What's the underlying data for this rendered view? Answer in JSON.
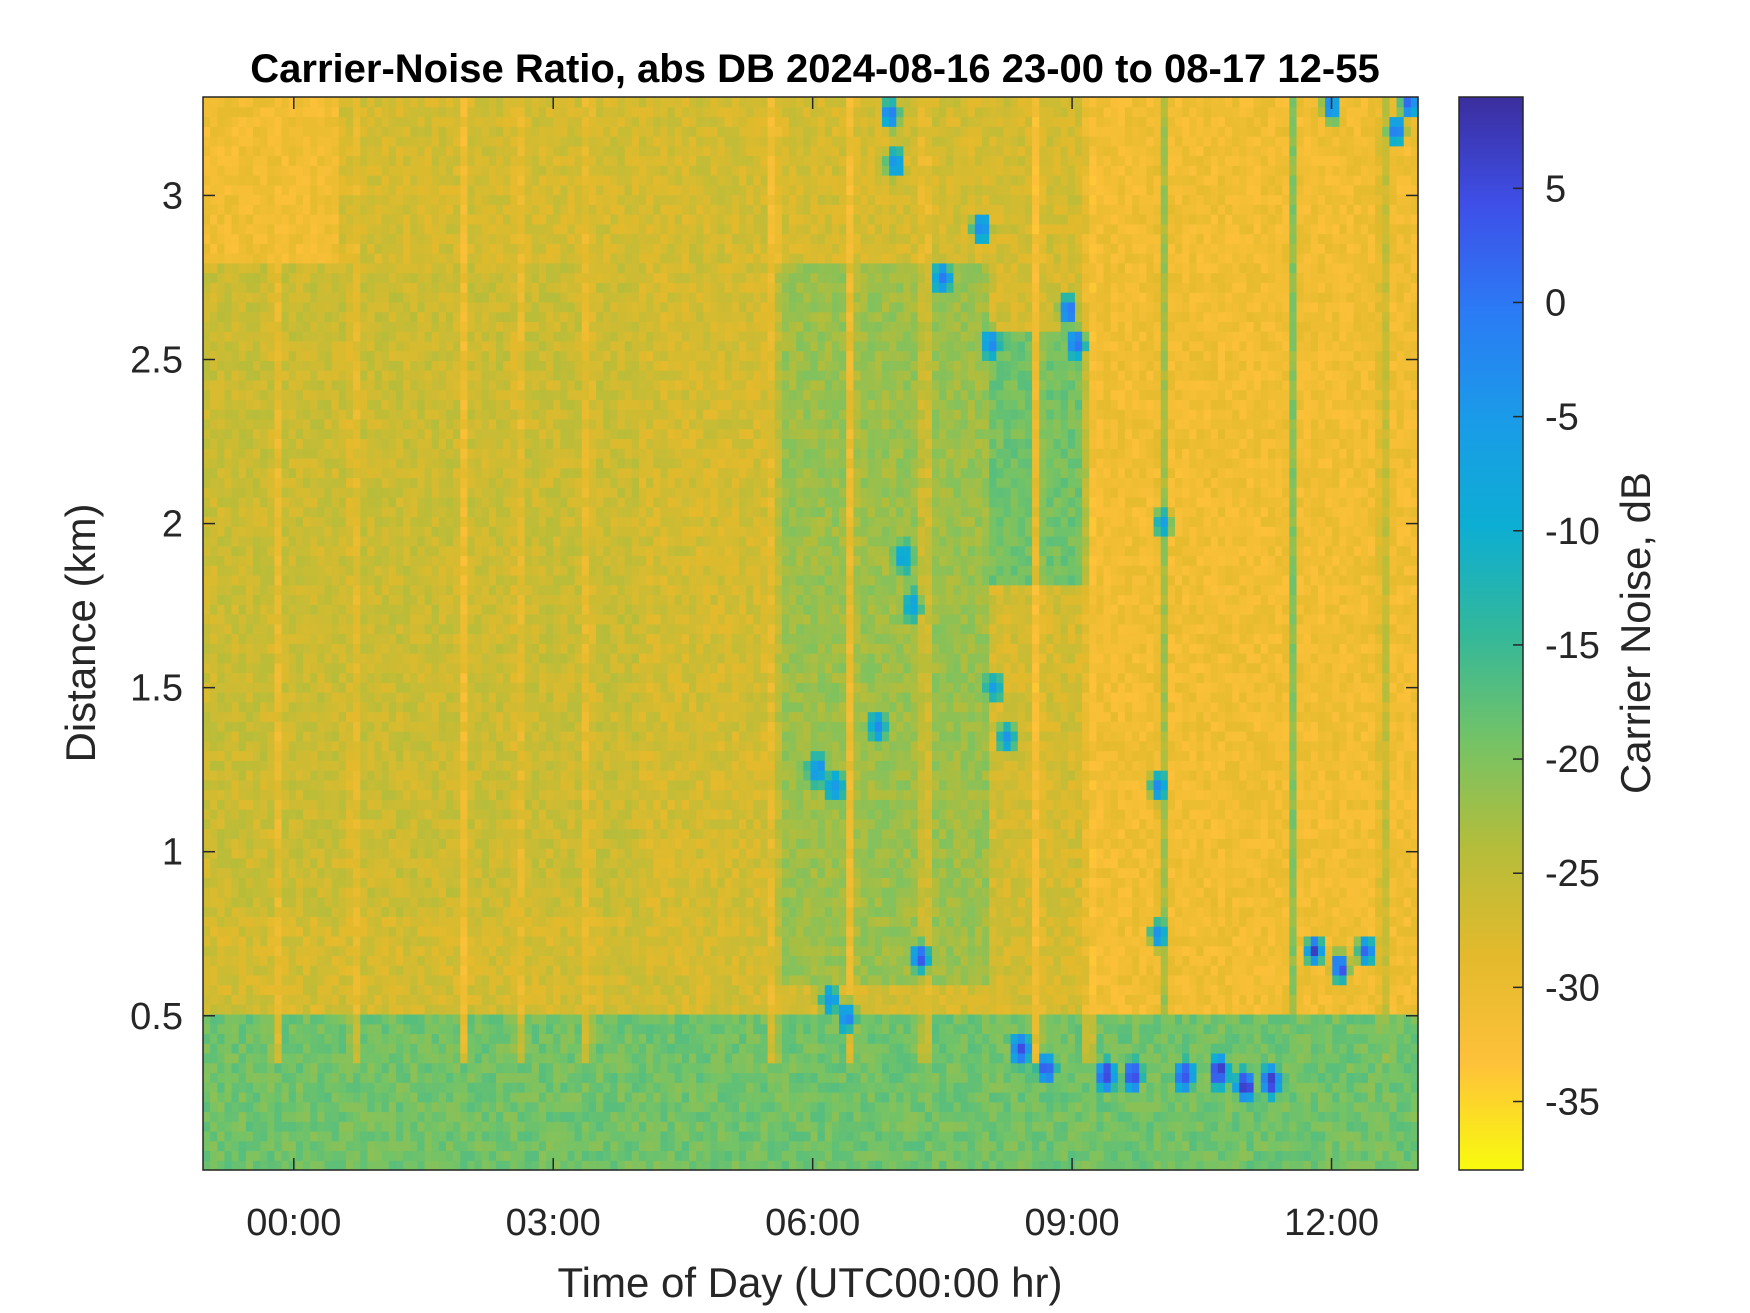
{
  "chart_data": {
    "type": "heatmap",
    "title": "Carrier-Noise Ratio, abs DB 2024-08-16 23-00 to 08-17 12-55",
    "xlabel": "Time of Day (UTC00:00 hr)",
    "ylabel": "Distance (km)",
    "colorbar_label": "Carrier Noise, dB",
    "x_unit": "hours relative to 2024-08-17 00:00 UTC",
    "x_range": [
      -1.05,
      13.0
    ],
    "y_range": [
      0.03,
      3.3
    ],
    "c_range": [
      -38,
      9
    ],
    "x_ticks": [
      0,
      3,
      6,
      9,
      12
    ],
    "x_tick_labels": [
      "00:00",
      "03:00",
      "06:00",
      "09:00",
      "12:00"
    ],
    "y_ticks": [
      0.5,
      1,
      1.5,
      2,
      2.5,
      3
    ],
    "y_tick_labels": [
      "0.5",
      "1",
      "1.5",
      "2",
      "2.5",
      "3"
    ],
    "c_ticks": [
      5,
      0,
      -5,
      -10,
      -15,
      -20,
      -25,
      -30,
      -35
    ],
    "c_tick_labels": [
      "5",
      "0",
      "-5",
      "-10",
      "-15",
      "-20",
      "-25",
      "-30",
      "-35"
    ],
    "colormap": "parula (reversed: yellow = low, dark blue = high)",
    "colormap_stops": [
      "#F9FB0E",
      "#FEC13A",
      "#E3BA2C",
      "#B5BD3A",
      "#74C366",
      "#33B89A",
      "#0DAED3",
      "#1A9BE8",
      "#2B7BF5",
      "#3E4FE8",
      "#3B2E9E"
    ],
    "background_levels": [
      {
        "x": [
          -1.05,
          0.5
        ],
        "y": [
          2.8,
          3.3
        ],
        "value": -31
      },
      {
        "x": [
          -1.05,
          4.0
        ],
        "y": [
          0.8,
          2.8
        ],
        "value": -26
      },
      {
        "x": [
          4.0,
          5.5
        ],
        "y": [
          0.6,
          2.6
        ],
        "value": -27
      },
      {
        "x": [
          5.5,
          8.0
        ],
        "y": [
          0.6,
          2.8
        ],
        "value": -22
      },
      {
        "x": [
          8.0,
          9.2
        ],
        "y": [
          1.8,
          2.6
        ],
        "value": -19
      },
      {
        "x": [
          9.2,
          13.0
        ],
        "y": [
          0.5,
          3.3
        ],
        "value": -31
      },
      {
        "x": [
          -1.05,
          13.0
        ],
        "y": [
          0.03,
          0.5
        ],
        "value": -19
      }
    ],
    "vertical_streaks": [
      {
        "x": -0.2,
        "value": -31
      },
      {
        "x": 0.7,
        "value": -31
      },
      {
        "x": 1.95,
        "value": -32
      },
      {
        "x": 2.6,
        "value": -31
      },
      {
        "x": 3.4,
        "value": -31
      },
      {
        "x": 5.55,
        "value": -34
      },
      {
        "x": 6.45,
        "value": -33
      },
      {
        "x": 7.3,
        "value": -32
      },
      {
        "x": 8.6,
        "value": -34
      },
      {
        "x": 9.2,
        "value": -33
      },
      {
        "x": 10.05,
        "value": -20
      },
      {
        "x": 11.55,
        "value": -20
      },
      {
        "x": 12.6,
        "value": -22
      }
    ],
    "strong_echoes": [
      {
        "x": 6.05,
        "y": 1.25,
        "value": -3
      },
      {
        "x": 6.25,
        "y": 1.2,
        "value": -3
      },
      {
        "x": 6.75,
        "y": 1.38,
        "value": -4
      },
      {
        "x": 6.95,
        "y": 3.1,
        "value": -2
      },
      {
        "x": 6.9,
        "y": 3.25,
        "value": -1
      },
      {
        "x": 7.05,
        "y": 1.9,
        "value": -7
      },
      {
        "x": 7.15,
        "y": 1.75,
        "value": -6
      },
      {
        "x": 7.5,
        "y": 2.75,
        "value": -1
      },
      {
        "x": 7.95,
        "y": 2.9,
        "value": 0
      },
      {
        "x": 8.05,
        "y": 2.55,
        "value": -2
      },
      {
        "x": 8.1,
        "y": 1.5,
        "value": -6
      },
      {
        "x": 8.25,
        "y": 1.35,
        "value": -5
      },
      {
        "x": 8.95,
        "y": 2.65,
        "value": 2
      },
      {
        "x": 9.05,
        "y": 2.55,
        "value": 0
      },
      {
        "x": 10.0,
        "y": 1.2,
        "value": -3
      },
      {
        "x": 10.05,
        "y": 2.0,
        "value": -6
      },
      {
        "x": 10.0,
        "y": 0.75,
        "value": -4
      },
      {
        "x": 6.2,
        "y": 0.55,
        "value": -4
      },
      {
        "x": 6.4,
        "y": 0.5,
        "value": -2
      },
      {
        "x": 7.25,
        "y": 0.68,
        "value": 3
      },
      {
        "x": 8.4,
        "y": 0.4,
        "value": 4
      },
      {
        "x": 8.7,
        "y": 0.34,
        "value": 3
      },
      {
        "x": 9.4,
        "y": 0.32,
        "value": 6
      },
      {
        "x": 9.7,
        "y": 0.32,
        "value": 5
      },
      {
        "x": 10.3,
        "y": 0.32,
        "value": 6
      },
      {
        "x": 10.7,
        "y": 0.33,
        "value": 7
      },
      {
        "x": 11.0,
        "y": 0.29,
        "value": 8
      },
      {
        "x": 11.3,
        "y": 0.3,
        "value": 6
      },
      {
        "x": 11.8,
        "y": 0.7,
        "value": 5
      },
      {
        "x": 12.1,
        "y": 0.65,
        "value": 5
      },
      {
        "x": 12.4,
        "y": 0.7,
        "value": 4
      },
      {
        "x": 12.0,
        "y": 3.27,
        "value": -1
      },
      {
        "x": 12.75,
        "y": 3.2,
        "value": 2
      },
      {
        "x": 12.9,
        "y": 3.28,
        "value": 3
      }
    ]
  }
}
